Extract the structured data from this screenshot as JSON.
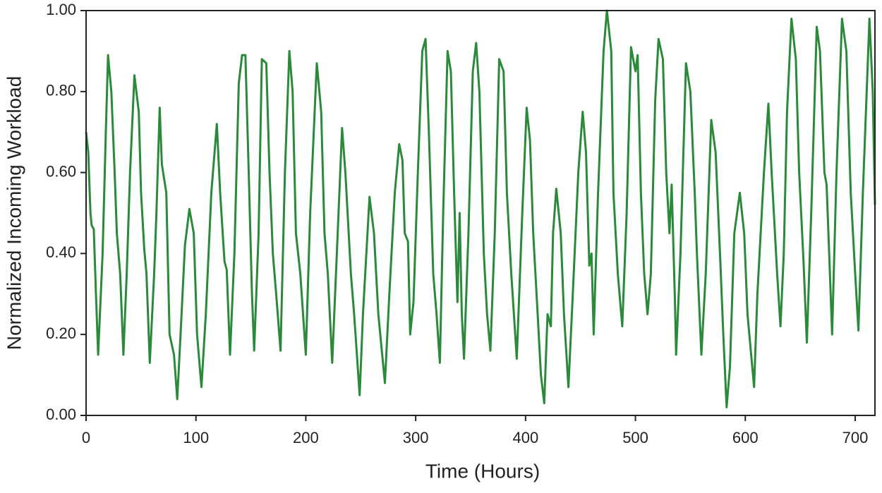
{
  "chart_data": {
    "type": "line",
    "xlabel": "Time (Hours)",
    "ylabel": "Normalized Incoming Workload",
    "xlim": [
      0,
      718
    ],
    "ylim": [
      0,
      1
    ],
    "xticks": [
      0,
      100,
      200,
      300,
      400,
      500,
      600,
      700
    ],
    "yticks": [
      {
        "value": 0,
        "label": "0.00"
      },
      {
        "value": 0.2,
        "label": "0.20"
      },
      {
        "value": 0.4,
        "label": "0.40"
      },
      {
        "value": 0.6,
        "label": "0.60"
      },
      {
        "value": 0.8,
        "label": "0.80"
      },
      {
        "value": 1,
        "label": "1.00"
      }
    ],
    "x": [
      0,
      2,
      4,
      5,
      7,
      9,
      11,
      15,
      18,
      20,
      23,
      26,
      28,
      31,
      34,
      37,
      40,
      44,
      48,
      50,
      53,
      55,
      58,
      62,
      64,
      67,
      69,
      73,
      76,
      80,
      83,
      86,
      90,
      94,
      98,
      101,
      105,
      109,
      114,
      119,
      122,
      126,
      128,
      131,
      135,
      139,
      142,
      145,
      148,
      151,
      153,
      157,
      160,
      164,
      167,
      170,
      173,
      177,
      181,
      185,
      188,
      191,
      195,
      200,
      204,
      210,
      214,
      217,
      220,
      224,
      229,
      233,
      236,
      241,
      244,
      249,
      252,
      258,
      262,
      266,
      272,
      276,
      281,
      285,
      288,
      290,
      293,
      295,
      298,
      302,
      306,
      309,
      312,
      316,
      319,
      322,
      325,
      329,
      332,
      335,
      338,
      340,
      342,
      344,
      348,
      352,
      355,
      358,
      362,
      365,
      368,
      372,
      376,
      380,
      383,
      387,
      392,
      397,
      401,
      404,
      407,
      411,
      414,
      417,
      420,
      423,
      425,
      428,
      432,
      435,
      439,
      443,
      448,
      452,
      455,
      458,
      460,
      462,
      466,
      471,
      474,
      478,
      480,
      484,
      488,
      492,
      496,
      500,
      502,
      505,
      508,
      511,
      514,
      518,
      521,
      525,
      528,
      531,
      533,
      536,
      537,
      541,
      546,
      550,
      554,
      556,
      560,
      564,
      569,
      573,
      577,
      580,
      583,
      586,
      590,
      595,
      599,
      602,
      608,
      611,
      617,
      621,
      624,
      627,
      629,
      632,
      635,
      638,
      642,
      646,
      649,
      653,
      656,
      660,
      665,
      668,
      672,
      674,
      677,
      679,
      683,
      688,
      692,
      696,
      700,
      703,
      707,
      713,
      716,
      718
    ],
    "series": [
      {
        "color": "#2a8a3a",
        "values": [
          0.7,
          0.65,
          0.5,
          0.47,
          0.46,
          0.3,
          0.15,
          0.4,
          0.7,
          0.89,
          0.8,
          0.6,
          0.45,
          0.35,
          0.15,
          0.35,
          0.6,
          0.84,
          0.75,
          0.55,
          0.41,
          0.35,
          0.13,
          0.35,
          0.5,
          0.76,
          0.62,
          0.55,
          0.2,
          0.15,
          0.04,
          0.2,
          0.42,
          0.51,
          0.45,
          0.2,
          0.07,
          0.25,
          0.55,
          0.72,
          0.55,
          0.38,
          0.36,
          0.15,
          0.4,
          0.82,
          0.89,
          0.89,
          0.6,
          0.3,
          0.16,
          0.45,
          0.88,
          0.87,
          0.6,
          0.4,
          0.3,
          0.16,
          0.6,
          0.9,
          0.8,
          0.45,
          0.35,
          0.15,
          0.5,
          0.87,
          0.75,
          0.45,
          0.35,
          0.13,
          0.45,
          0.71,
          0.6,
          0.35,
          0.25,
          0.05,
          0.25,
          0.54,
          0.45,
          0.25,
          0.08,
          0.3,
          0.55,
          0.67,
          0.63,
          0.45,
          0.43,
          0.2,
          0.28,
          0.6,
          0.9,
          0.93,
          0.7,
          0.35,
          0.25,
          0.13,
          0.5,
          0.9,
          0.85,
          0.55,
          0.28,
          0.5,
          0.25,
          0.14,
          0.45,
          0.85,
          0.92,
          0.8,
          0.4,
          0.25,
          0.16,
          0.45,
          0.88,
          0.85,
          0.55,
          0.35,
          0.14,
          0.5,
          0.76,
          0.68,
          0.45,
          0.25,
          0.1,
          0.03,
          0.25,
          0.22,
          0.45,
          0.56,
          0.45,
          0.25,
          0.07,
          0.3,
          0.6,
          0.75,
          0.65,
          0.37,
          0.4,
          0.2,
          0.55,
          0.9,
          1.0,
          0.9,
          0.55,
          0.35,
          0.22,
          0.5,
          0.91,
          0.85,
          0.89,
          0.55,
          0.35,
          0.25,
          0.35,
          0.78,
          0.93,
          0.88,
          0.6,
          0.45,
          0.57,
          0.28,
          0.15,
          0.4,
          0.87,
          0.8,
          0.55,
          0.4,
          0.15,
          0.35,
          0.73,
          0.65,
          0.4,
          0.2,
          0.02,
          0.12,
          0.45,
          0.55,
          0.45,
          0.25,
          0.07,
          0.3,
          0.6,
          0.77,
          0.6,
          0.45,
          0.35,
          0.22,
          0.4,
          0.75,
          0.98,
          0.88,
          0.6,
          0.38,
          0.18,
          0.5,
          0.96,
          0.9,
          0.6,
          0.57,
          0.35,
          0.2,
          0.6,
          0.98,
          0.9,
          0.55,
          0.35,
          0.21,
          0.55,
          0.98,
          0.8,
          0.52
        ]
      }
    ]
  }
}
